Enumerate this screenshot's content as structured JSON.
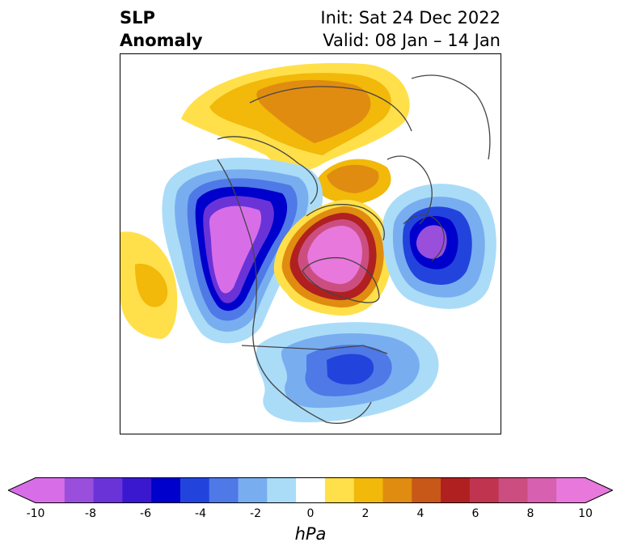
{
  "title": {
    "left_line1": "SLP",
    "left_line2": "Anomaly",
    "right_line1": "Init: Sat 24 Dec 2022",
    "right_line2": "Valid: 08 Jan – 14 Jan"
  },
  "colorbar": {
    "unit": "hPa",
    "tick_labels": [
      "-10",
      "-8",
      "-6",
      "-4",
      "-2",
      "0",
      "2",
      "4",
      "6",
      "8",
      "10"
    ],
    "levels": [
      -10,
      -9,
      -8,
      -7,
      -6,
      -5,
      -4,
      -3,
      -2,
      -1,
      1,
      2,
      3,
      4,
      5,
      6,
      7,
      8,
      9,
      10
    ],
    "colors": [
      "#d76ee8",
      "#9a4fdc",
      "#6a33d8",
      "#3a18d0",
      "#0000cc",
      "#2244dd",
      "#4f79e6",
      "#78aef0",
      "#aadcf8",
      "#ffffff",
      "#ffe04a",
      "#f2b80a",
      "#e08c10",
      "#c85818",
      "#b02020",
      "#c03450",
      "#cc4e80",
      "#d860b0",
      "#e878dc"
    ],
    "extend": "both"
  },
  "map": {
    "projection": "north-polar-stereographic",
    "anomalies": [
      {
        "region": "Arctic Ocean / Siberia",
        "sign": "positive",
        "peak_hpa": 5
      },
      {
        "region": "Greenland",
        "sign": "positive",
        "peak_hpa": 10
      },
      {
        "region": "Alaska / Bering Sea",
        "sign": "negative",
        "peak_hpa": -10
      },
      {
        "region": "Scandinavia",
        "sign": "negative",
        "peak_hpa": -9
      },
      {
        "region": "Eastern US / Atlantic",
        "sign": "negative",
        "peak_hpa": -4
      },
      {
        "region": "North Pacific",
        "sign": "positive",
        "peak_hpa": 3
      }
    ]
  }
}
